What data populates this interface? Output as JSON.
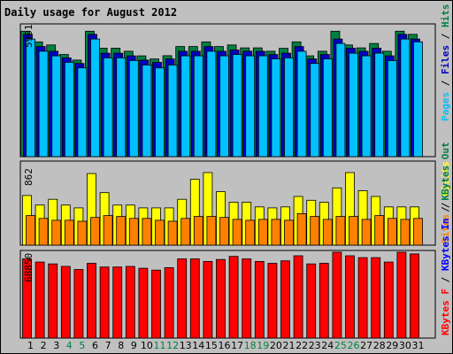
{
  "chart_data": {
    "type": "bar",
    "title": "Daily usage for August 2012",
    "categories": [
      "1",
      "2",
      "3",
      "4",
      "5",
      "6",
      "7",
      "8",
      "9",
      "10",
      "11",
      "12",
      "13",
      "14",
      "15",
      "16",
      "17",
      "18",
      "19",
      "20",
      "21",
      "22",
      "23",
      "24",
      "25",
      "26",
      "27",
      "28",
      "29",
      "30",
      "31"
    ],
    "weekend_days": [
      "4",
      "5",
      "11",
      "12",
      "18",
      "19",
      "25",
      "26"
    ],
    "panels": [
      {
        "name": "hits-files-pages",
        "ymax_label": "5901",
        "ylim": [
          0,
          5901
        ],
        "legend": [
          {
            "text": "Pages",
            "color": "#00c0ff"
          },
          {
            "text": " / ",
            "color": "#000000"
          },
          {
            "text": "Files",
            "color": "#0000c0"
          },
          {
            "text": " / ",
            "color": "#000000"
          },
          {
            "text": "Hits",
            "color": "#008040"
          }
        ],
        "series": [
          {
            "name": "Hits",
            "color": "#008040",
            "values": [
              5650,
              5170,
              5030,
              4600,
              4350,
              5650,
              4890,
              4890,
              4750,
              4540,
              4400,
              4550,
              4960,
              4960,
              5170,
              4960,
              5030,
              4900,
              4900,
              4750,
              4880,
              5170,
              4540,
              4750,
              5650,
              5030,
              4900,
              5100,
              4750,
              5650,
              5510
            ]
          },
          {
            "name": "Files",
            "color": "#0000c0",
            "values": [
              5510,
              4960,
              4750,
              4450,
              4200,
              5510,
              4660,
              4660,
              4540,
              4350,
              4250,
              4400,
              4750,
              4750,
              4960,
              4750,
              4810,
              4750,
              4750,
              4600,
              4660,
              4960,
              4400,
              4600,
              5300,
              4890,
              4750,
              4890,
              4540,
              5510,
              5300
            ]
          },
          {
            "name": "Pages",
            "color": "#00c0ff",
            "values": [
              5300,
              4750,
              4540,
              4250,
              4000,
              5300,
              4450,
              4450,
              4330,
              4130,
              4000,
              4130,
              4540,
              4540,
              4750,
              4540,
              4600,
              4540,
              4540,
              4400,
              4450,
              4750,
              4200,
              4400,
              5100,
              4660,
              4540,
              4660,
              4330,
              5300,
              5170
            ]
          }
        ]
      },
      {
        "name": "visits-sites",
        "ymax_label": "862",
        "ylim": [
          0,
          862
        ],
        "legend": [
          {
            "text": "Sites",
            "color": "#ff8000"
          },
          {
            "text": " / ",
            "color": "#000000"
          },
          {
            "text": "Visits",
            "color": "#ffff00"
          }
        ],
        "series": [
          {
            "name": "Visits",
            "color": "#ffff00",
            "values": [
              520,
              420,
              480,
              420,
              390,
              750,
              550,
              420,
              420,
              390,
              390,
              390,
              480,
              690,
              760,
              560,
              450,
              450,
              400,
              390,
              400,
              510,
              470,
              450,
              600,
              760,
              570,
              510,
              400,
              400,
              400
            ]
          },
          {
            "name": "Sites",
            "color": "#ff8000",
            "values": [
              310,
              280,
              260,
              260,
              250,
              290,
              310,
              300,
              280,
              280,
              260,
              250,
              280,
              300,
              300,
              290,
              270,
              260,
              270,
              270,
              260,
              330,
              300,
              270,
              300,
              300,
              270,
              310,
              280,
              270,
              280
            ]
          }
        ]
      },
      {
        "name": "kbytes",
        "ymax_label": "68850",
        "ylim": [
          0,
          68850
        ],
        "legend": [
          {
            "text": "KBytes F",
            "color": "#ff0000"
          },
          {
            "text": " / ",
            "color": "#000000"
          },
          {
            "text": "KBytes In",
            "color": "#0000ff"
          },
          {
            "text": " / ",
            "color": "#000000"
          },
          {
            "text": "KBytes Out",
            "color": "#008040"
          }
        ],
        "series": [
          {
            "name": "KBytes F",
            "color": "#ff0000",
            "values": [
              63500,
              61000,
              59500,
              57500,
              55000,
              60000,
              57000,
              57000,
              57500,
              56000,
              54500,
              56500,
              63500,
              63500,
              61500,
              63000,
              65500,
              63500,
              61500,
              60000,
              62000,
              66000,
              59500,
              60000,
              68850,
              66000,
              64500,
              64500,
              61000,
              68850,
              67500
            ]
          }
        ]
      }
    ]
  }
}
